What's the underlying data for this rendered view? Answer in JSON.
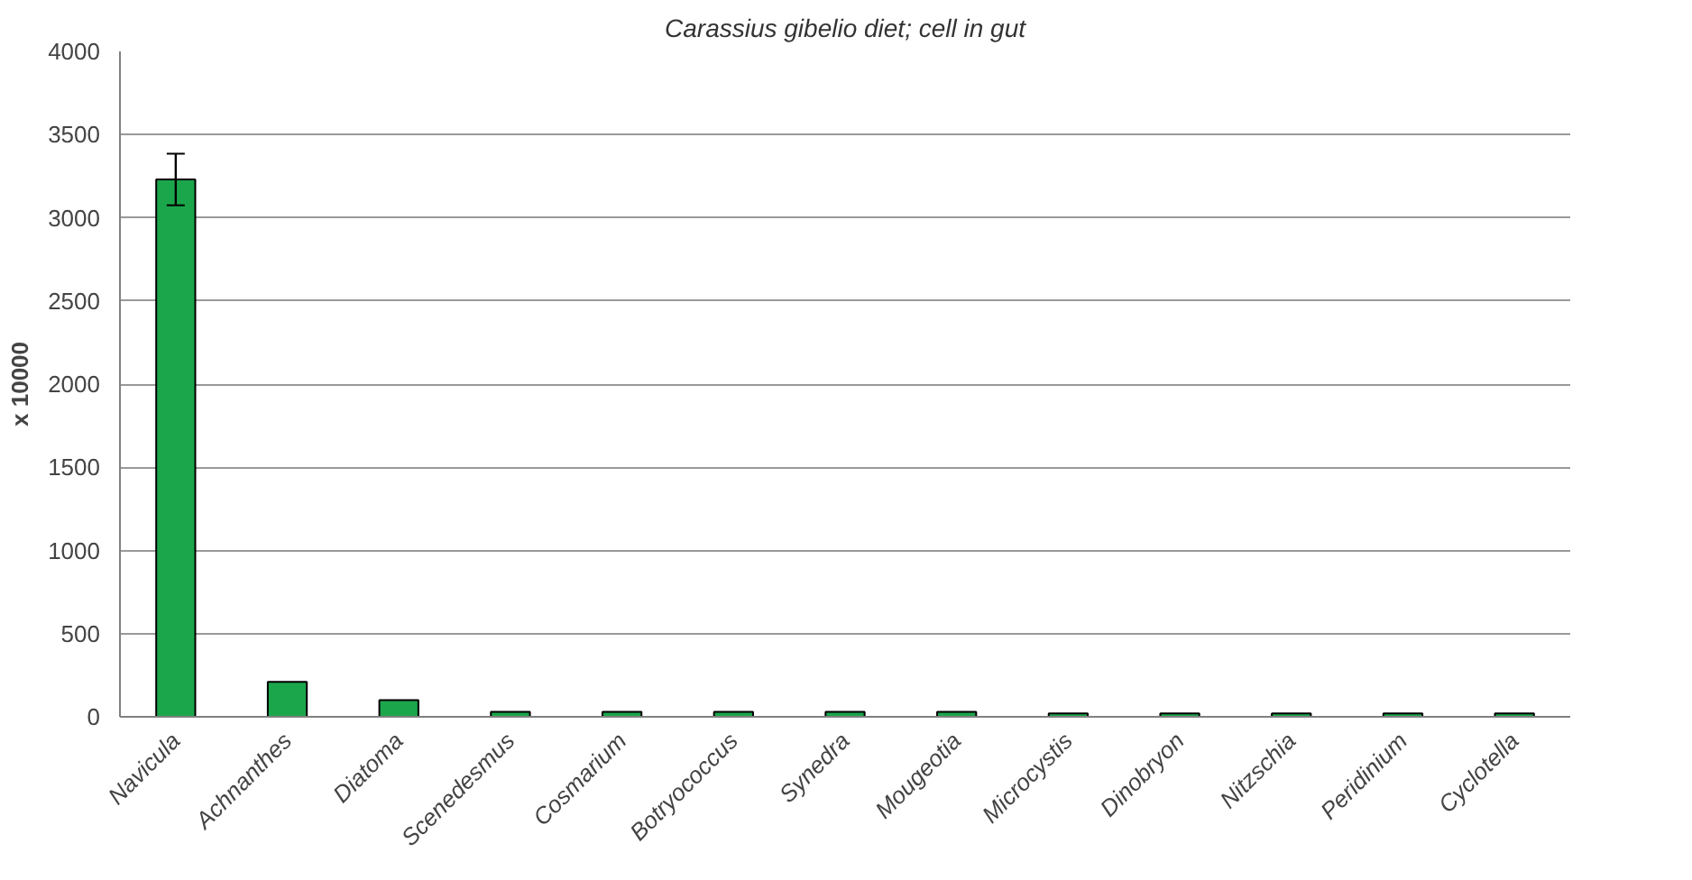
{
  "chart_data": {
    "type": "bar",
    "title": "Carassius gibelio diet; cell in gut",
    "ylabel": "x 10000",
    "categories": [
      "Navicula",
      "Achnanthes",
      "Diatoma",
      "Scenedesmus",
      "Cosmarium",
      "Botryococcus",
      "Synedra",
      "Mougeotia",
      "Microcystis",
      "Dinobryon",
      "Nitzschia",
      "Peridinium",
      "Cyclotella"
    ],
    "values": [
      3230,
      210,
      100,
      30,
      30,
      30,
      30,
      30,
      20,
      20,
      20,
      20,
      20
    ],
    "errors": [
      155,
      null,
      null,
      null,
      null,
      null,
      null,
      null,
      null,
      null,
      null,
      null,
      null
    ],
    "color": "#1ca64c",
    "ylim": [
      0,
      4000
    ],
    "yticks": [
      0,
      500,
      1000,
      1500,
      2000,
      2500,
      3000,
      3500,
      4000
    ],
    "grid": "y"
  }
}
